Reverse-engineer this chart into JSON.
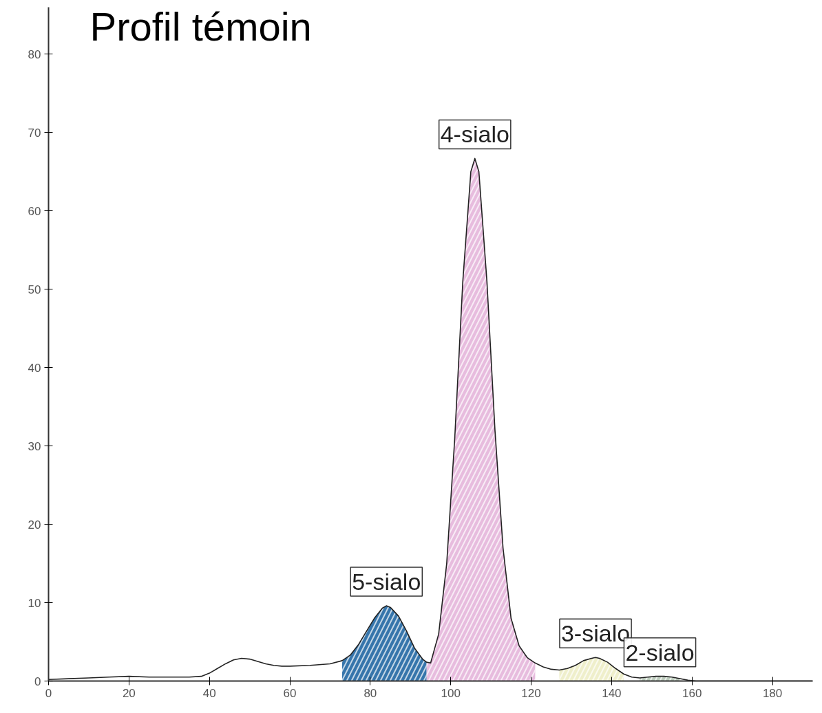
{
  "chart_data": {
    "type": "line",
    "title": "Profil témoin",
    "xlim": [
      0,
      190
    ],
    "ylim": [
      0,
      86
    ],
    "xticks": [
      0,
      20,
      40,
      60,
      80,
      100,
      120,
      140,
      160,
      180
    ],
    "yticks": [
      0,
      10,
      20,
      30,
      40,
      50,
      60,
      70,
      80
    ],
    "grid": false,
    "marker": "none",
    "line_style": "solid",
    "series": [
      {
        "type": "area",
        "color": "#2b6ea6",
        "x": [
          73,
          75,
          77,
          79,
          81,
          83,
          84,
          85,
          87,
          89,
          91,
          93,
          94
        ],
        "values": [
          2.6,
          3.3,
          4.6,
          6.3,
          8.0,
          9.3,
          9.6,
          9.4,
          8.3,
          6.4,
          4.2,
          2.8,
          2.4
        ]
      },
      {
        "type": "area",
        "color": "#e6b8dc",
        "x": [
          94,
          95,
          97,
          99,
          101,
          103,
          105,
          106,
          107,
          109,
          111,
          113,
          115,
          117,
          119,
          121
        ],
        "values": [
          2.4,
          2.3,
          6,
          15,
          31,
          51,
          65,
          66.7,
          65,
          51,
          32,
          17,
          8,
          4.5,
          3.0,
          2.3
        ]
      },
      {
        "type": "area",
        "color": "#eeeec8",
        "x": [
          127,
          129,
          131,
          133,
          135,
          136,
          137,
          139,
          141,
          143
        ],
        "values": [
          1.4,
          1.6,
          2.0,
          2.6,
          2.9,
          3.0,
          2.9,
          2.4,
          1.6,
          0.9
        ]
      },
      {
        "type": "area",
        "color": "#b8c8b8",
        "x": [
          147,
          149,
          151,
          152,
          153,
          155,
          157
        ],
        "values": [
          0.4,
          0.5,
          0.6,
          0.6,
          0.6,
          0.5,
          0.3
        ]
      },
      {
        "color": "#222222",
        "x": [
          0,
          5,
          10,
          15,
          20,
          25,
          30,
          35,
          38,
          40,
          42,
          44,
          46,
          48,
          50,
          52,
          54,
          56,
          58,
          60,
          65,
          70,
          73,
          75,
          77,
          79,
          81,
          83,
          84,
          85,
          87,
          89,
          91,
          93,
          94,
          95,
          97,
          99,
          101,
          103,
          105,
          106,
          107,
          109,
          111,
          113,
          115,
          117,
          119,
          121,
          123,
          125,
          127,
          129,
          131,
          133,
          135,
          136,
          137,
          139,
          141,
          143,
          145,
          147,
          149,
          151,
          152,
          153,
          155,
          157,
          159,
          161,
          163,
          170,
          180,
          190
        ],
        "values": [
          0.2,
          0.3,
          0.4,
          0.5,
          0.6,
          0.5,
          0.5,
          0.5,
          0.6,
          1.0,
          1.6,
          2.2,
          2.7,
          2.9,
          2.8,
          2.5,
          2.2,
          2.0,
          1.9,
          1.9,
          2.0,
          2.2,
          2.6,
          3.3,
          4.6,
          6.3,
          8.0,
          9.3,
          9.6,
          9.4,
          8.3,
          6.4,
          4.2,
          2.8,
          2.4,
          2.3,
          6,
          15,
          31,
          51,
          65,
          66.7,
          65,
          51,
          32,
          17,
          8,
          4.5,
          3.0,
          2.3,
          1.8,
          1.5,
          1.4,
          1.6,
          2.0,
          2.6,
          2.9,
          3.0,
          2.9,
          2.4,
          1.6,
          0.9,
          0.5,
          0.4,
          0.5,
          0.6,
          0.6,
          0.6,
          0.5,
          0.3,
          0.1,
          0,
          0,
          0,
          0,
          0
        ]
      }
    ],
    "annotations": [
      {
        "text": "5-sialo",
        "x": 84,
        "y": 9.6
      },
      {
        "text": "4-sialo",
        "x": 106,
        "y": 66.7
      },
      {
        "text": "3-sialo",
        "x": 136,
        "y": 3.0
      },
      {
        "text": "2-sialo",
        "x": 152,
        "y": 0.6
      }
    ]
  }
}
